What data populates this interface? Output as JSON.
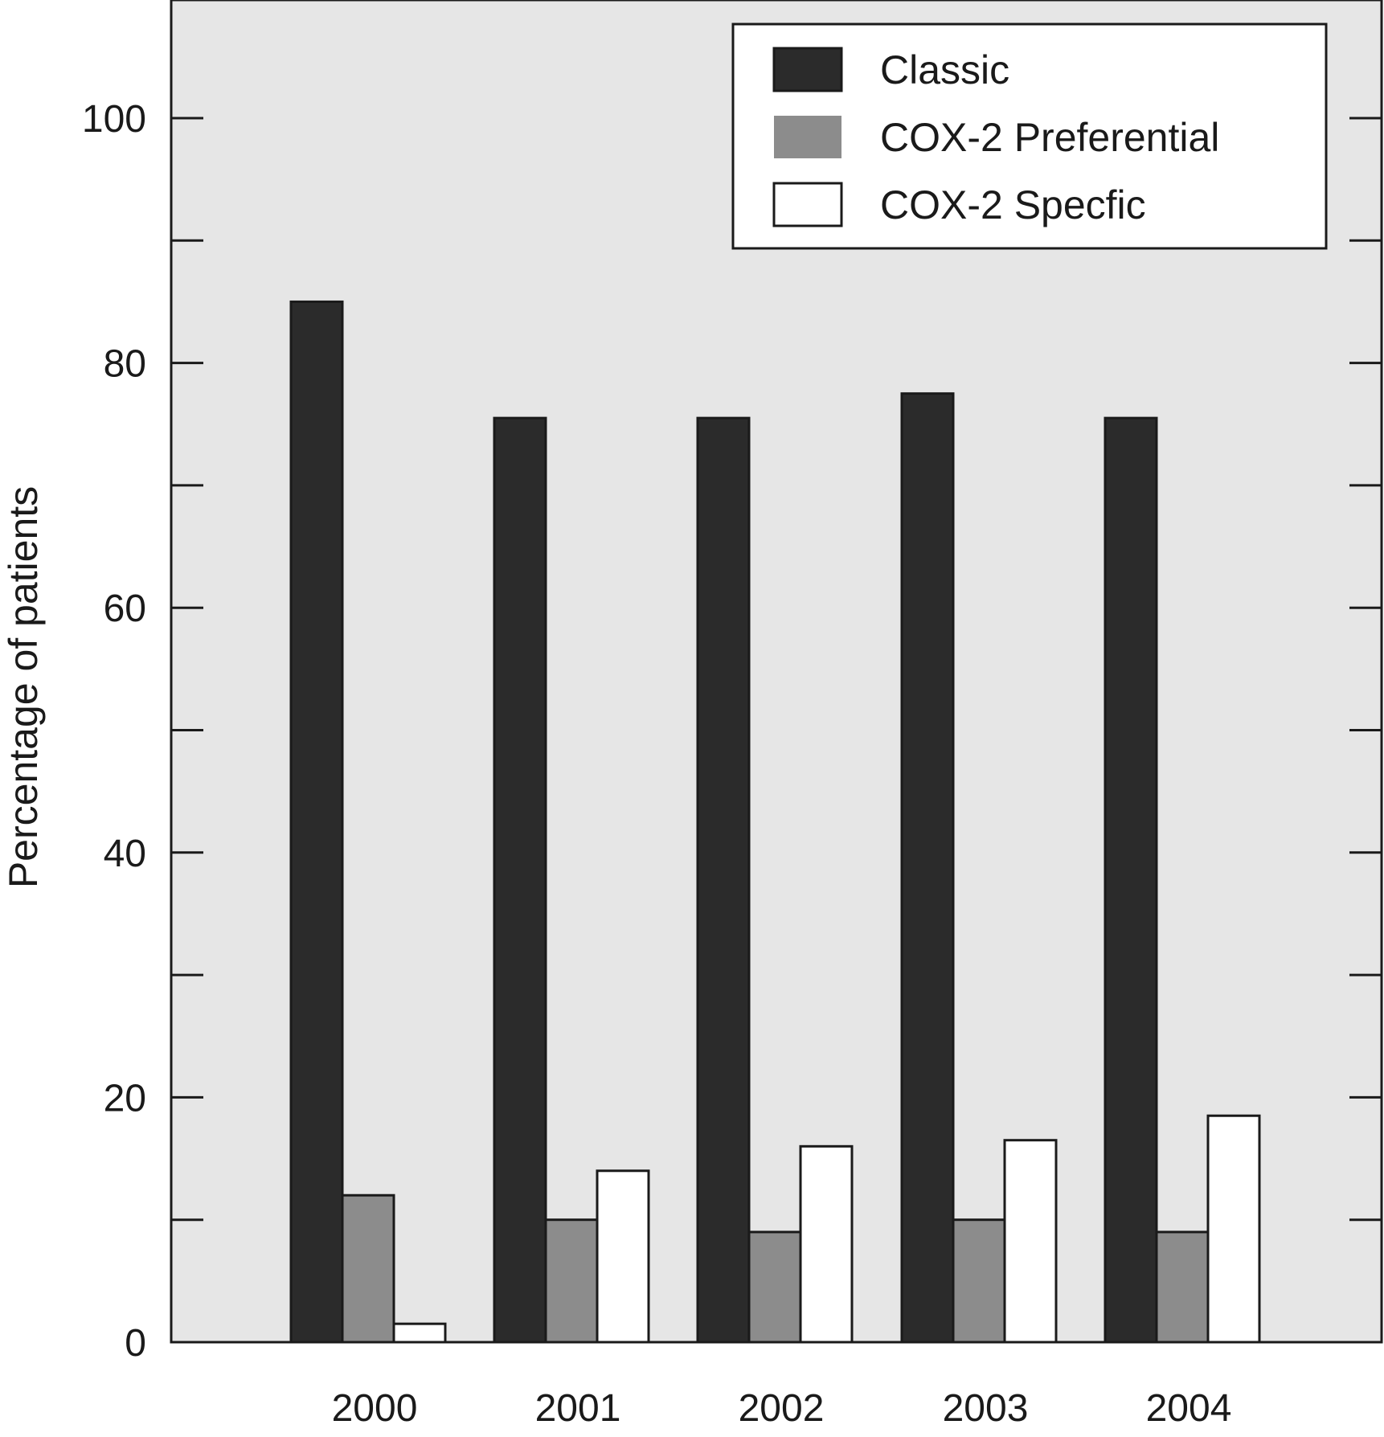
{
  "chart_data": {
    "type": "bar",
    "title": "",
    "xlabel": "",
    "ylabel": "Percentage of patients",
    "categories": [
      "2000",
      "2001",
      "2002",
      "2003",
      "2004"
    ],
    "series": [
      {
        "name": "Classic",
        "values": [
          85,
          75.5,
          75.5,
          77.5,
          75.5
        ],
        "color": "#2b2b2b"
      },
      {
        "name": "COX-2 Preferential",
        "values": [
          12,
          10,
          9,
          10,
          9
        ],
        "color": "#8c8c8c"
      },
      {
        "name": "COX-2 Specfic",
        "values": [
          1.5,
          14,
          16,
          16.5,
          18.5
        ],
        "color": "#ffffff"
      }
    ],
    "ylim": [
      0,
      109
    ],
    "yticks": [
      0,
      20,
      40,
      60,
      80,
      100
    ],
    "minor_ytick_step": 10,
    "grid": false,
    "legend_position": "top-right",
    "plot_background": "#e6e6e6"
  }
}
